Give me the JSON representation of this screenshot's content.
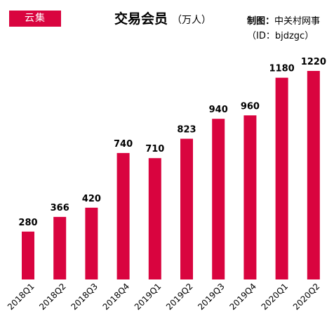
{
  "brand": {
    "label": "云集",
    "color": "#d9043f"
  },
  "header": {
    "title": "交易会员",
    "unit": "（万人）"
  },
  "credit": {
    "label": "制图：",
    "author": "中关村网事",
    "id_line": "（ID：bjdzgc）"
  },
  "chart_data": {
    "type": "bar",
    "title": "交易会员",
    "unit": "（万人）",
    "categories": [
      "2018Q1",
      "2018Q2",
      "2018Q3",
      "2018Q4",
      "2019Q1",
      "2019Q2",
      "2019Q3",
      "2019Q4",
      "2020Q1",
      "2020Q2"
    ],
    "values": [
      280,
      366,
      420,
      740,
      710,
      823,
      940,
      960,
      1180,
      1220
    ],
    "value_labels": [
      "280",
      "366",
      "420",
      "740",
      "710",
      "823",
      "940",
      "960",
      "1180",
      "1220"
    ],
    "ylim": [
      0,
      1220
    ],
    "bar_color": "#d9043f",
    "grid": false,
    "legend": "none"
  }
}
